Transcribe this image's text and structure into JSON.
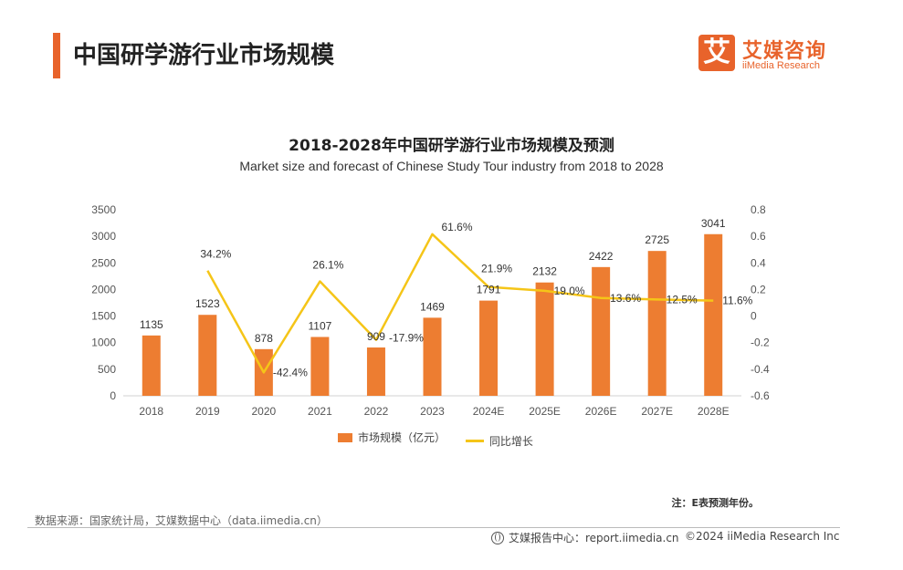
{
  "header": {
    "title": "中国研学游行业市场规模",
    "logo_char": "艾",
    "logo_cn": "艾媒咨询",
    "logo_en": "iiMedia Research"
  },
  "chart_data": {
    "type": "bar",
    "title": "2018-2028年中国研学游行业市场规模及预测",
    "subtitle": "Market size and forecast of Chinese Study Tour industry from 2018 to 2028",
    "categories": [
      "2018",
      "2019",
      "2020",
      "2021",
      "2022",
      "2023",
      "2024E",
      "2025E",
      "2026E",
      "2027E",
      "2028E"
    ],
    "series": [
      {
        "name": "市场规模（亿元）",
        "type": "bar",
        "axis": "left",
        "color": "#ed7d31",
        "values": [
          1135,
          1523,
          878,
          1107,
          909,
          1469,
          1791,
          2132,
          2422,
          2725,
          3041
        ],
        "labels": [
          "1135",
          "1523",
          "878",
          "1107",
          "909",
          "1469",
          "1791",
          "2132",
          "2422",
          "2725",
          "3041"
        ]
      },
      {
        "name": "同比增长",
        "type": "line",
        "axis": "right",
        "color": "#f5c518",
        "values": [
          null,
          0.342,
          -0.424,
          0.261,
          -0.179,
          0.616,
          0.219,
          0.19,
          0.136,
          0.125,
          0.116
        ],
        "labels": [
          "",
          "34.2%",
          "-42.4%",
          "26.1%",
          "-17.9%",
          "61.6%",
          "21.9%",
          "19.0%",
          "13.6%",
          "12.5%",
          "11.6%"
        ]
      }
    ],
    "y_left": {
      "min": 0,
      "max": 3500,
      "ticks": [
        "0",
        "500",
        "1000",
        "1500",
        "2000",
        "2500",
        "3000",
        "3500"
      ]
    },
    "y_right": {
      "min": -0.6,
      "max": 0.8,
      "ticks": [
        "-0.6",
        "-0.4",
        "-0.2",
        "0",
        "0.2",
        "0.4",
        "0.6",
        "0.8"
      ]
    },
    "grid": false,
    "legend": "bottom"
  },
  "legend": {
    "bar": "市场规模（亿元）",
    "line": "同比增长"
  },
  "footer": {
    "note": "注：E表预测年份。",
    "source": "数据来源：国家统计局，艾媒数据中心（data.iimedia.cn）",
    "report": "艾媒报告中心：report.iimedia.cn",
    "copyright": "©2024  iiMedia Research  Inc"
  }
}
